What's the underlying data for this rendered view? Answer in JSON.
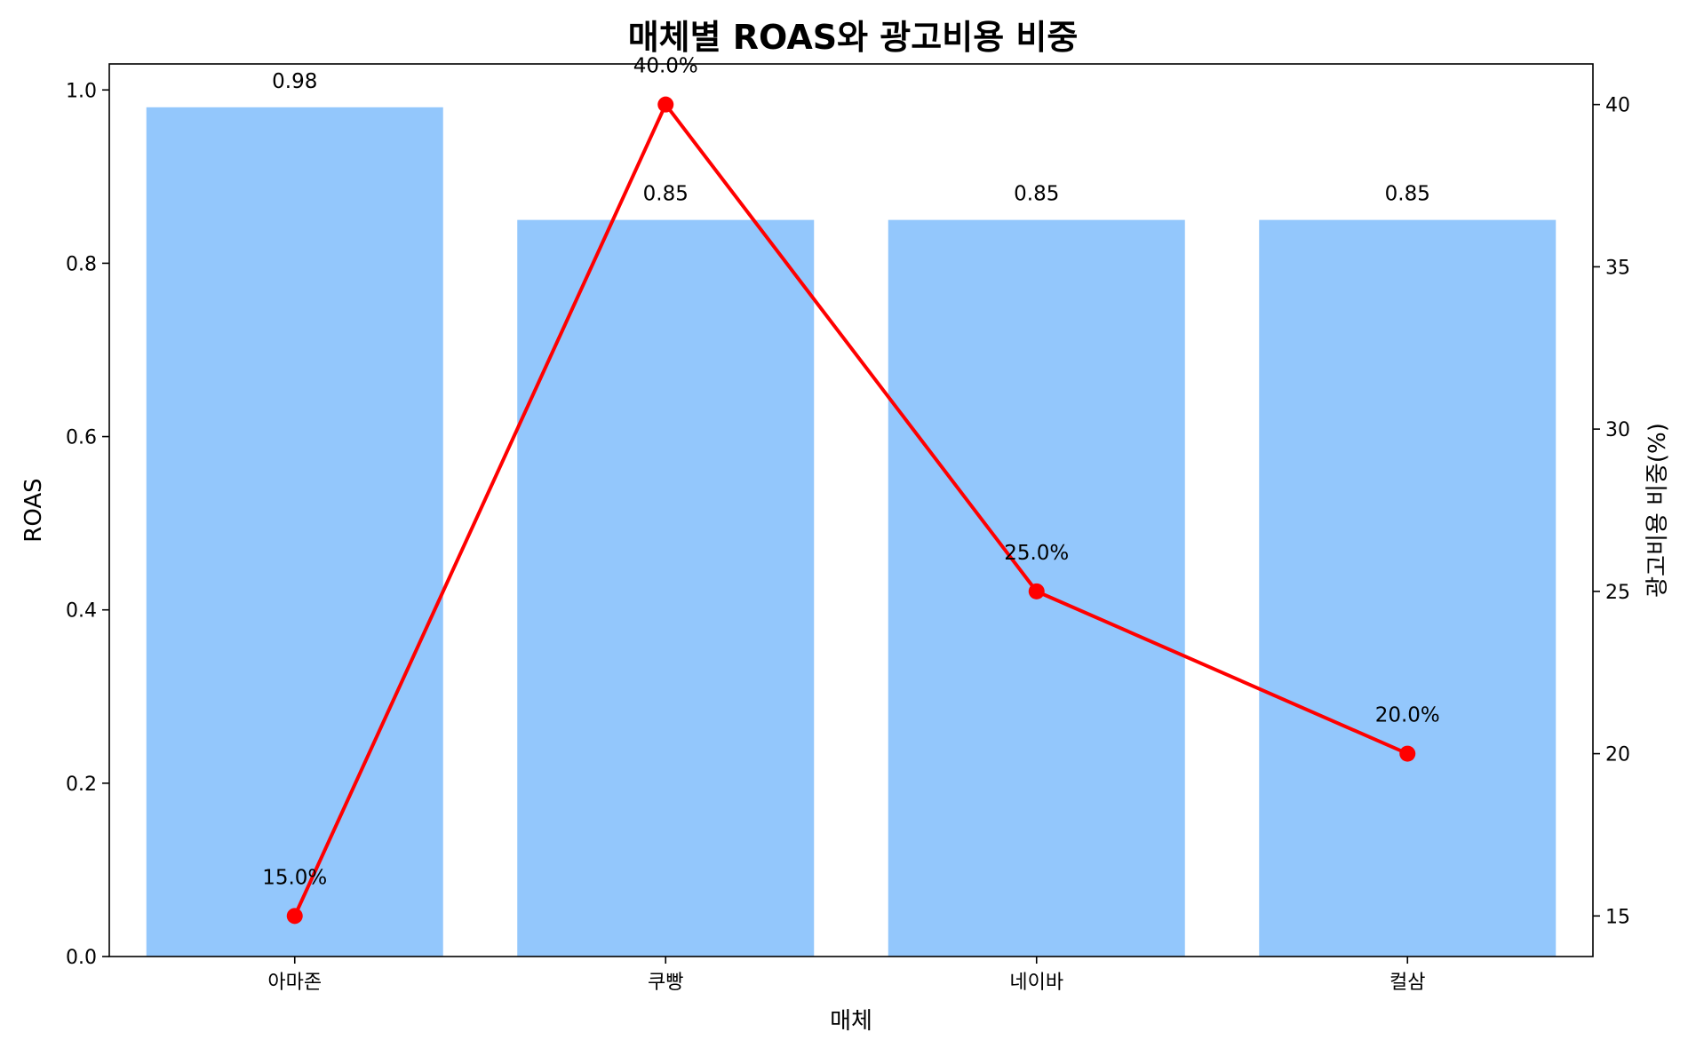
{
  "chart_data": {
    "type": "bar",
    "title": "매체별 ROAS와 광고비용 비중",
    "xlabel": "매체",
    "ylabel": "ROAS",
    "y2label": "광고비용 비중(%)",
    "categories": [
      "아마존",
      "쿠빵",
      "네이바",
      "컬삼"
    ],
    "series": [
      {
        "type": "bar",
        "axis": "left",
        "values": [
          0.98,
          0.85,
          0.85,
          0.85
        ],
        "labels": [
          "0.98",
          "0.85",
          "0.85",
          "0.85"
        ],
        "color": "#93c7fc"
      },
      {
        "type": "line",
        "axis": "right",
        "values": [
          15.0,
          40.0,
          25.0,
          20.0
        ],
        "labels": [
          "15.0%",
          "40.0%",
          "25.0%",
          "20.0%"
        ],
        "color": "#ff0000"
      }
    ],
    "ylim": [
      0,
      1.03
    ],
    "y2lim": [
      13.75,
      41.25
    ],
    "yticks": [
      0.0,
      0.2,
      0.4,
      0.6,
      0.8,
      1.0
    ],
    "ytick_labels": [
      "0.0",
      "0.2",
      "0.4",
      "0.6",
      "0.8",
      "1.0"
    ],
    "y2ticks": [
      15,
      20,
      25,
      30,
      35,
      40
    ],
    "y2tick_labels": [
      "15",
      "20",
      "25",
      "30",
      "35",
      "40"
    ],
    "grid": false,
    "legend": "none"
  }
}
